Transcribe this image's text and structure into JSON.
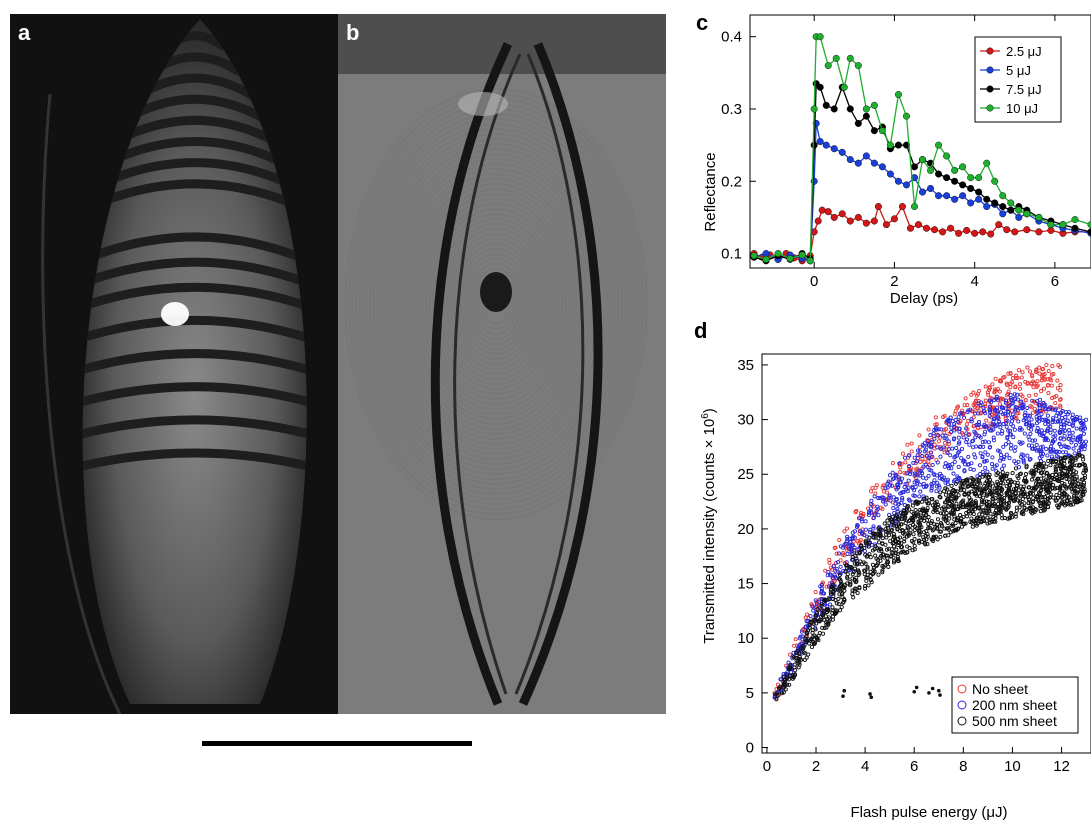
{
  "figure": {
    "panel_labels": {
      "a": "a",
      "b": "b",
      "c": "c",
      "d": "d"
    }
  },
  "chart_data": [
    {
      "panel": "c",
      "type": "line",
      "xlabel": "Delay (ps)",
      "ylabel": "Reflectance",
      "xlim": [
        -1.6,
        6.9
      ],
      "ylim": [
        0.08,
        0.43
      ],
      "xticks": [
        0,
        2,
        4,
        6
      ],
      "yticks": [
        0.1,
        0.2,
        0.3,
        0.4
      ],
      "legend_position": "top-right",
      "series": [
        {
          "name": "2.5 μJ",
          "color": "#d01818",
          "x": [
            -1.5,
            -1.3,
            -1.1,
            -0.9,
            -0.7,
            -0.5,
            -0.3,
            -0.1,
            0.0,
            0.1,
            0.2,
            0.35,
            0.5,
            0.7,
            0.9,
            1.1,
            1.3,
            1.5,
            1.6,
            1.8,
            2.0,
            2.2,
            2.4,
            2.6,
            2.8,
            3.0,
            3.2,
            3.4,
            3.6,
            3.8,
            4.0,
            4.2,
            4.4,
            4.6,
            4.8,
            5.0,
            5.3,
            5.6,
            5.9,
            6.2,
            6.5,
            6.9
          ],
          "y": [
            0.1,
            0.095,
            0.098,
            0.092,
            0.1,
            0.094,
            0.09,
            0.097,
            0.13,
            0.145,
            0.16,
            0.158,
            0.15,
            0.155,
            0.145,
            0.15,
            0.142,
            0.145,
            0.165,
            0.14,
            0.148,
            0.165,
            0.135,
            0.14,
            0.135,
            0.133,
            0.13,
            0.135,
            0.128,
            0.132,
            0.128,
            0.13,
            0.127,
            0.14,
            0.133,
            0.13,
            0.133,
            0.13,
            0.132,
            0.128,
            0.13,
            0.13
          ]
        },
        {
          "name": "5 μJ",
          "color": "#1a3fd6",
          "x": [
            -1.5,
            -1.2,
            -0.9,
            -0.6,
            -0.3,
            -0.1,
            0.0,
            0.05,
            0.15,
            0.3,
            0.5,
            0.7,
            0.9,
            1.1,
            1.3,
            1.5,
            1.7,
            1.9,
            2.1,
            2.3,
            2.5,
            2.7,
            2.9,
            3.1,
            3.3,
            3.5,
            3.7,
            3.9,
            4.1,
            4.3,
            4.5,
            4.7,
            4.9,
            5.1,
            5.3,
            5.6,
            5.9,
            6.2,
            6.5,
            6.9
          ],
          "y": [
            0.095,
            0.1,
            0.092,
            0.098,
            0.093,
            0.09,
            0.2,
            0.28,
            0.255,
            0.25,
            0.245,
            0.24,
            0.23,
            0.225,
            0.235,
            0.225,
            0.22,
            0.21,
            0.2,
            0.195,
            0.205,
            0.185,
            0.19,
            0.18,
            0.18,
            0.175,
            0.18,
            0.17,
            0.175,
            0.165,
            0.168,
            0.155,
            0.16,
            0.15,
            0.155,
            0.145,
            0.14,
            0.135,
            0.132,
            0.128
          ]
        },
        {
          "name": "7.5 μJ",
          "color": "#000000",
          "x": [
            -1.5,
            -1.2,
            -0.9,
            -0.6,
            -0.3,
            -0.1,
            0.0,
            0.05,
            0.15,
            0.3,
            0.5,
            0.7,
            0.9,
            1.1,
            1.3,
            1.5,
            1.7,
            1.9,
            2.1,
            2.3,
            2.5,
            2.7,
            2.9,
            3.1,
            3.3,
            3.5,
            3.7,
            3.9,
            4.1,
            4.3,
            4.5,
            4.7,
            4.9,
            5.1,
            5.3,
            5.6,
            5.9,
            6.2,
            6.5,
            6.9
          ],
          "y": [
            0.095,
            0.09,
            0.097,
            0.092,
            0.1,
            0.093,
            0.25,
            0.335,
            0.33,
            0.305,
            0.3,
            0.33,
            0.3,
            0.28,
            0.29,
            0.27,
            0.275,
            0.245,
            0.25,
            0.25,
            0.22,
            0.23,
            0.225,
            0.21,
            0.205,
            0.2,
            0.195,
            0.19,
            0.185,
            0.175,
            0.17,
            0.165,
            0.16,
            0.165,
            0.16,
            0.15,
            0.145,
            0.14,
            0.135,
            0.13
          ]
        },
        {
          "name": "10  μJ",
          "color": "#1fae2e",
          "x": [
            -1.5,
            -1.2,
            -0.9,
            -0.6,
            -0.3,
            -0.1,
            0.0,
            0.05,
            0.15,
            0.35,
            0.55,
            0.75,
            0.9,
            1.1,
            1.3,
            1.5,
            1.7,
            1.9,
            2.1,
            2.3,
            2.5,
            2.7,
            2.9,
            3.1,
            3.3,
            3.5,
            3.7,
            3.9,
            4.1,
            4.3,
            4.5,
            4.7,
            4.9,
            5.1,
            5.3,
            5.6,
            5.9,
            6.2,
            6.5,
            6.9
          ],
          "y": [
            0.097,
            0.092,
            0.1,
            0.093,
            0.098,
            0.09,
            0.3,
            0.4,
            0.4,
            0.36,
            0.37,
            0.33,
            0.37,
            0.36,
            0.3,
            0.305,
            0.27,
            0.25,
            0.32,
            0.29,
            0.165,
            0.23,
            0.215,
            0.25,
            0.235,
            0.215,
            0.22,
            0.205,
            0.205,
            0.225,
            0.2,
            0.18,
            0.17,
            0.16,
            0.155,
            0.15,
            0.14,
            0.14,
            0.147,
            0.14
          ]
        }
      ]
    },
    {
      "panel": "d",
      "type": "scatter",
      "xlabel": "Flash pulse energy (μJ)",
      "ylabel": "Transmitted intensity (counts × 10",
      "ylabel_superscript": "6",
      "ylabel_close": ")",
      "xlim": [
        -0.2,
        13.2
      ],
      "ylim": [
        -0.5,
        36
      ],
      "xticks": [
        0,
        2,
        4,
        6,
        8,
        10,
        12
      ],
      "yticks": [
        0,
        5,
        10,
        15,
        20,
        25,
        30,
        35
      ],
      "legend_position": "bottom-right",
      "series": [
        {
          "name": "No sheet",
          "color": "#e83838",
          "envelope": {
            "x": [
              0.3,
              1,
              2,
              3,
              4,
              5,
              6,
              7,
              8,
              9,
              10,
              11,
              12
            ],
            "y_low": [
              4,
              7,
              12,
              16,
              19.5,
              22,
              24.5,
              26.5,
              28,
              29,
              30,
              30.5,
              31
            ],
            "y_high": [
              5,
              9,
              15,
              19.5,
              23,
              26,
              28.5,
              30.5,
              32,
              33.5,
              34.5,
              35,
              35
            ]
          }
        },
        {
          "name": "200 nm sheet",
          "color": "#2a2ad8",
          "envelope": {
            "x": [
              0.3,
              1,
              2,
              3,
              4,
              5,
              6,
              7,
              8,
              9,
              10,
              11,
              12,
              13
            ],
            "y_low": [
              4,
              6.5,
              11,
              14.5,
              17.5,
              20,
              22,
              23.5,
              24.5,
              25,
              25.5,
              26,
              26.5,
              27
            ],
            "y_high": [
              5,
              8.5,
              14,
              18.5,
              22,
              25,
              27.5,
              29.5,
              31,
              32,
              32.5,
              32,
              31,
              30
            ]
          }
        },
        {
          "name": "500 nm sheet",
          "color": "#111111",
          "envelope": {
            "x": [
              0.3,
              1,
              2,
              3,
              4,
              5,
              6,
              7,
              8,
              9,
              10,
              11,
              12,
              13
            ],
            "y_low": [
              3.8,
              6,
              9.5,
              12.5,
              14.5,
              16.5,
              18,
              19,
              20,
              20.5,
              21,
              21.5,
              22,
              22.5
            ],
            "y_high": [
              4.8,
              7.8,
              12.5,
              16,
              19,
              21,
              22.5,
              23.5,
              24.5,
              25,
              25.5,
              26,
              26.5,
              27
            ]
          },
          "outliers": {
            "x": [
              3.1,
              3.15,
              4.2,
              4.25,
              6.0,
              6.1,
              6.6,
              6.75,
              7.0,
              7.05,
              8.4,
              8.55,
              9.0,
              9.05,
              11.5
            ],
            "y": [
              4.7,
              5.2,
              4.9,
              4.6,
              5.1,
              5.5,
              5.0,
              5.4,
              5.2,
              4.8,
              5.0,
              5.6,
              4.9,
              5.3,
              4.9
            ]
          }
        }
      ]
    }
  ]
}
